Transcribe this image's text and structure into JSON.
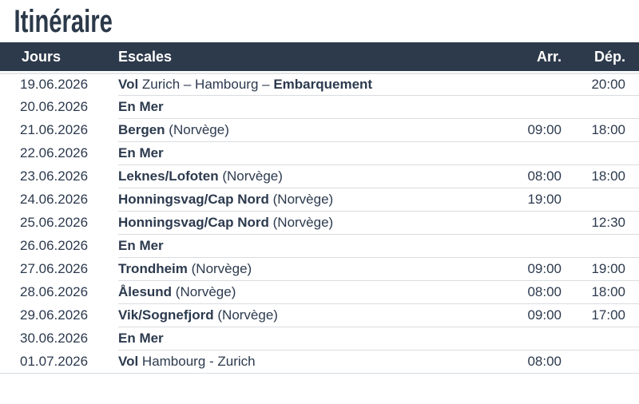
{
  "page": {
    "title": "Itinéraire"
  },
  "colors": {
    "header_bg": "#2d3a4b",
    "header_text": "#ffffff",
    "body_text": "#2c3a4e",
    "title_text": "#2b3949",
    "row_border": "#d9dce0"
  },
  "table": {
    "headers": {
      "jours": "Jours",
      "escales": "Escales",
      "arr": "Arr.",
      "dep": "Dép."
    },
    "rows": [
      {
        "date": "19.06.2026",
        "escale": [
          {
            "t": "Vol",
            "b": true
          },
          {
            "t": " Zurich – Hambourg – ",
            "b": false
          },
          {
            "t": "Embarquement",
            "b": true
          }
        ],
        "arr": "",
        "dep": "20:00"
      },
      {
        "date": "20.06.2026",
        "escale": [
          {
            "t": "En Mer",
            "b": true
          }
        ],
        "arr": "",
        "dep": ""
      },
      {
        "date": "21.06.2026",
        "escale": [
          {
            "t": "Bergen",
            "b": true
          },
          {
            "t": " (Norvège)",
            "b": false
          }
        ],
        "arr": "09:00",
        "dep": "18:00"
      },
      {
        "date": "22.06.2026",
        "escale": [
          {
            "t": "En Mer",
            "b": true
          }
        ],
        "arr": "",
        "dep": ""
      },
      {
        "date": "23.06.2026",
        "escale": [
          {
            "t": "Leknes/Lofoten",
            "b": true
          },
          {
            "t": " (Norvège)",
            "b": false
          }
        ],
        "arr": "08:00",
        "dep": "18:00"
      },
      {
        "date": "24.06.2026",
        "escale": [
          {
            "t": "Honningsvag/Cap Nord",
            "b": true
          },
          {
            "t": " (Norvège)",
            "b": false
          }
        ],
        "arr": "19:00",
        "dep": ""
      },
      {
        "date": "25.06.2026",
        "escale": [
          {
            "t": "Honningsvag/Cap Nord",
            "b": true
          },
          {
            "t": " (Norvège)",
            "b": false
          }
        ],
        "arr": "",
        "dep": "12:30"
      },
      {
        "date": "26.06.2026",
        "escale": [
          {
            "t": "En Mer",
            "b": true
          }
        ],
        "arr": "",
        "dep": ""
      },
      {
        "date": "27.06.2026",
        "escale": [
          {
            "t": "Trondheim",
            "b": true
          },
          {
            "t": " (Norvège)",
            "b": false
          }
        ],
        "arr": "09:00",
        "dep": "19:00"
      },
      {
        "date": "28.06.2026",
        "escale": [
          {
            "t": "Ålesund",
            "b": true
          },
          {
            "t": " (Norvège)",
            "b": false
          }
        ],
        "arr": "08:00",
        "dep": "18:00"
      },
      {
        "date": "29.06.2026",
        "escale": [
          {
            "t": "Vik/Sognefjord",
            "b": true
          },
          {
            "t": " (Norvège)",
            "b": false
          }
        ],
        "arr": "09:00",
        "dep": "17:00"
      },
      {
        "date": "30.06.2026",
        "escale": [
          {
            "t": "En Mer",
            "b": true
          }
        ],
        "arr": "",
        "dep": ""
      },
      {
        "date": "01.07.2026",
        "escale": [
          {
            "t": "Vol",
            "b": true
          },
          {
            "t": " Hambourg - Zurich",
            "b": false
          }
        ],
        "arr": "08:00",
        "dep": ""
      }
    ]
  }
}
